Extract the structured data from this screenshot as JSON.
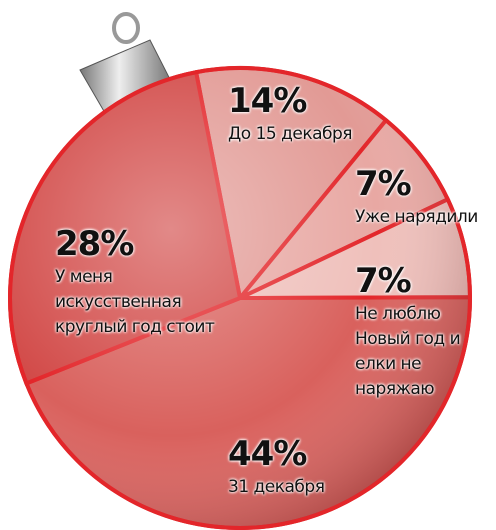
{
  "chart_data": {
    "type": "pie",
    "categories": [
      "До 15 декабря",
      "Уже нарядили",
      "Не люблю Новый год и елки не наряжаю",
      "31 декабря",
      "У меня искусственная круглый год стоит"
    ],
    "values": [
      14,
      7,
      7,
      44,
      28
    ],
    "value_labels": [
      "14%",
      "7%",
      "7%",
      "44%",
      "28%"
    ],
    "colors": [
      "#e29a95",
      "#e8a8a3",
      "#efc0bb",
      "#d9615d",
      "#d24a48"
    ]
  }
}
